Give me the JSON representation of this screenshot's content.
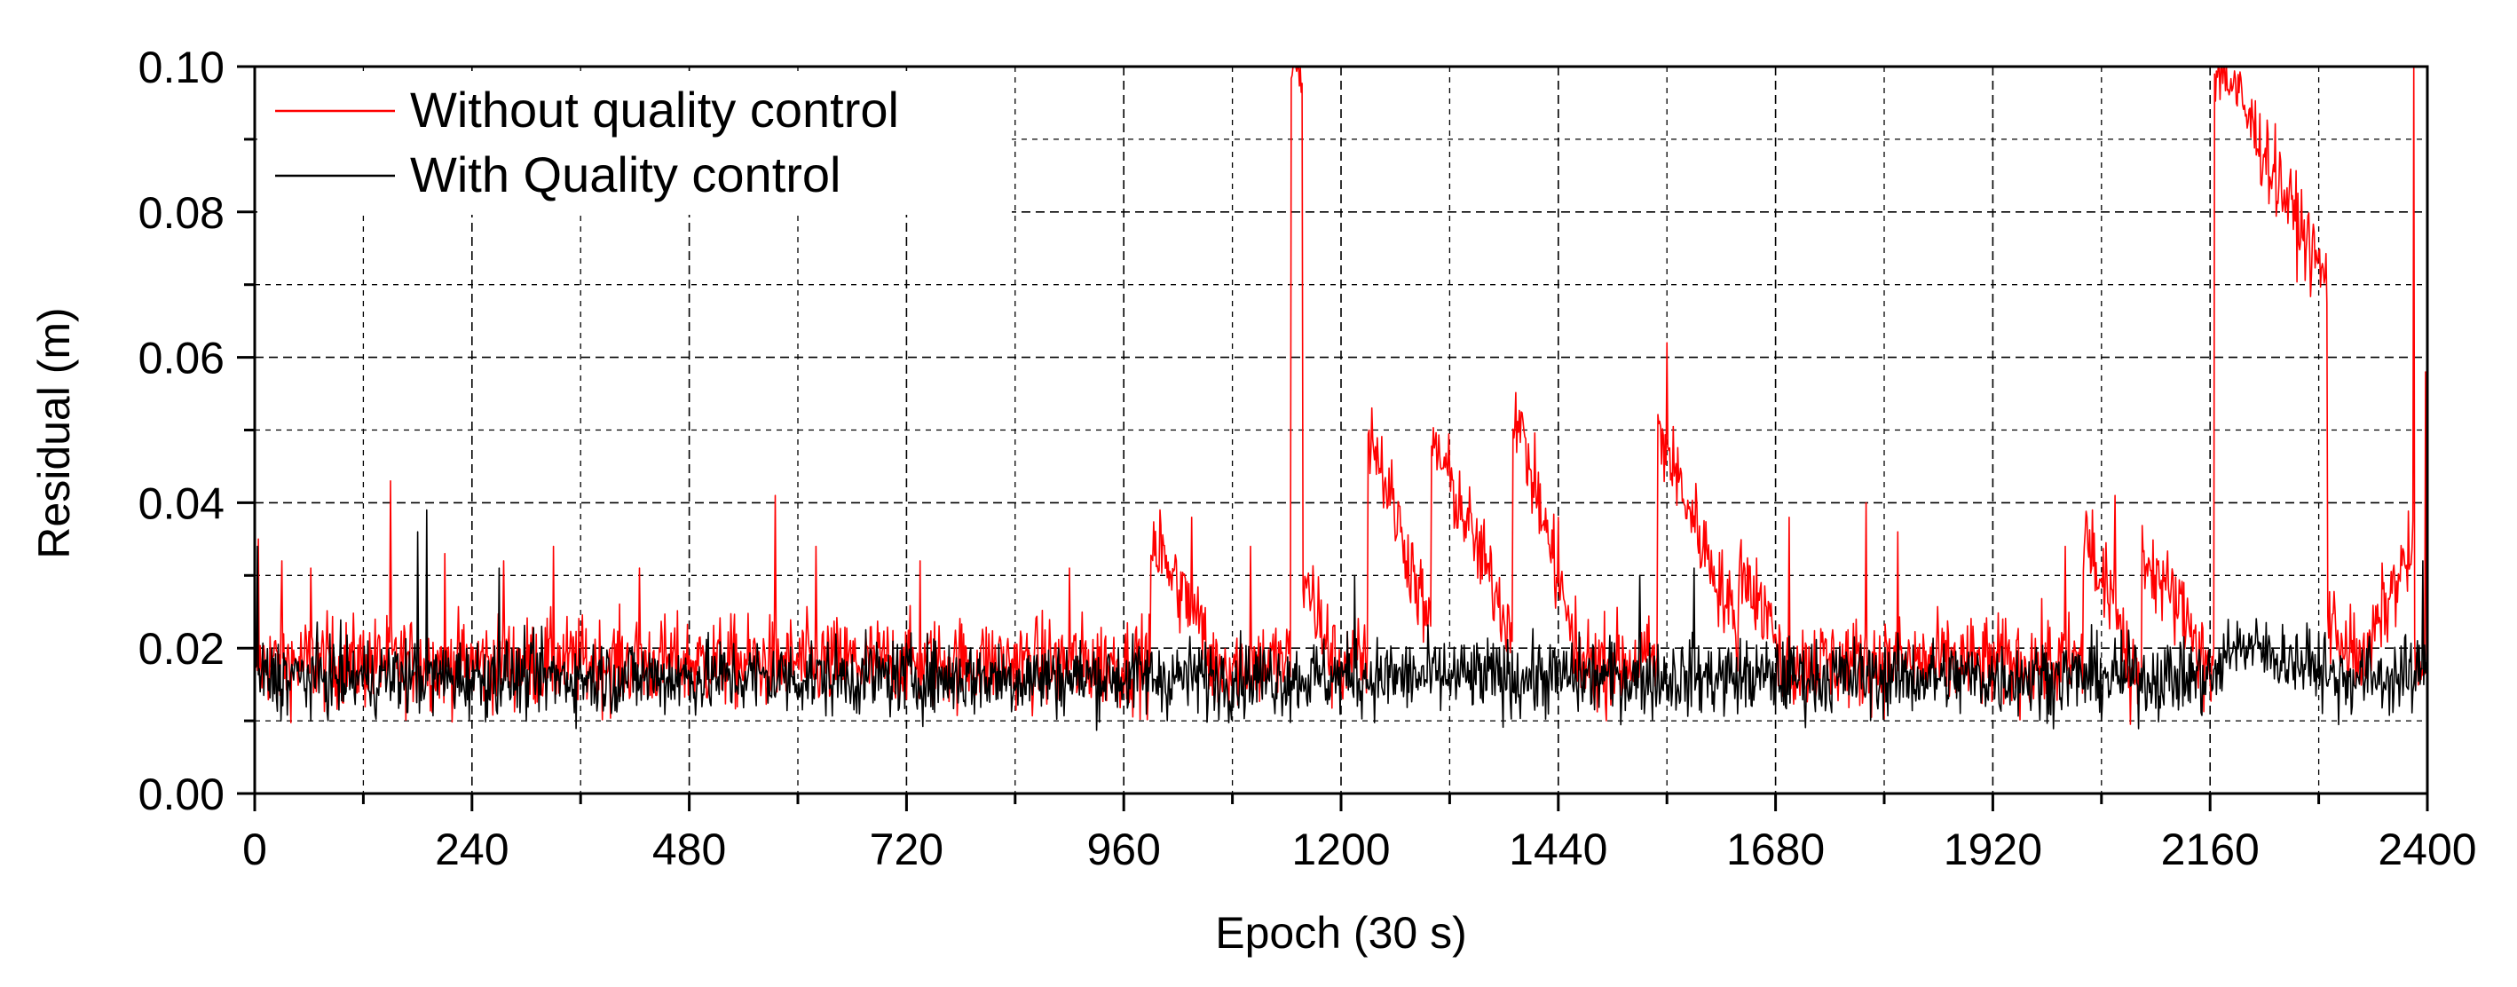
{
  "chart_data": {
    "type": "line",
    "title": "",
    "xlabel": "Epoch (30 s)",
    "ylabel": "Residual (m)",
    "xlim": [
      0,
      2400
    ],
    "ylim": [
      0,
      0.1
    ],
    "x_ticks": [
      0,
      240,
      480,
      720,
      960,
      1200,
      1440,
      1680,
      1920,
      2160,
      2400
    ],
    "x_tick_labels": [
      "0",
      "240",
      "480",
      "720",
      "960",
      "1200",
      "1440",
      "1680",
      "1920",
      "2160",
      "2400"
    ],
    "y_ticks": [
      0,
      0.02,
      0.04,
      0.06,
      0.08,
      0.1
    ],
    "y_tick_labels": [
      "0.00",
      "0.02",
      "0.04",
      "0.06",
      "0.08",
      "0.10"
    ],
    "x_minor_step": 120,
    "y_minor_step": 0.01,
    "grid": true,
    "legend_position": "top-left",
    "series": [
      {
        "name": "Without quality control",
        "color": "#ff0000",
        "baseline": 0.018,
        "noise": 0.0045,
        "spikes": [
          {
            "x": 4,
            "y": 0.035
          },
          {
            "x": 30,
            "y": 0.032
          },
          {
            "x": 62,
            "y": 0.031
          },
          {
            "x": 150,
            "y": 0.043
          },
          {
            "x": 210,
            "y": 0.033
          },
          {
            "x": 275,
            "y": 0.032
          },
          {
            "x": 330,
            "y": 0.034
          },
          {
            "x": 425,
            "y": 0.031
          },
          {
            "x": 575,
            "y": 0.041
          },
          {
            "x": 620,
            "y": 0.034
          },
          {
            "x": 735,
            "y": 0.032
          },
          {
            "x": 900,
            "y": 0.031
          },
          {
            "x": 1000,
            "y": 0.039
          },
          {
            "x": 1035,
            "y": 0.038
          },
          {
            "x": 1100,
            "y": 0.034
          },
          {
            "x": 1150,
            "y": 0.1
          },
          {
            "x": 1153,
            "y": 0.1
          },
          {
            "x": 1440,
            "y": 0.038
          },
          {
            "x": 1560,
            "y": 0.062
          },
          {
            "x": 1695,
            "y": 0.038
          },
          {
            "x": 1780,
            "y": 0.04
          },
          {
            "x": 1815,
            "y": 0.036
          },
          {
            "x": 2000,
            "y": 0.034
          },
          {
            "x": 2030,
            "y": 0.039
          },
          {
            "x": 2055,
            "y": 0.041
          },
          {
            "x": 2385,
            "y": 0.1
          },
          {
            "x": 2398,
            "y": 0.058
          }
        ],
        "episodes": [
          {
            "start": 990,
            "end": 1050,
            "peak": 0.035,
            "decay_to": 0.022
          },
          {
            "start": 1145,
            "end": 1158,
            "peak": 0.1,
            "decay_to": 0.1
          },
          {
            "start": 1158,
            "end": 1185,
            "peak": 0.03,
            "decay_to": 0.022
          },
          {
            "start": 1230,
            "end": 1300,
            "peak": 0.051,
            "decay_to": 0.022
          },
          {
            "start": 1300,
            "end": 1390,
            "peak": 0.049,
            "decay_to": 0.022
          },
          {
            "start": 1390,
            "end": 1455,
            "peak": 0.054,
            "decay_to": 0.022
          },
          {
            "start": 1550,
            "end": 1640,
            "peak": 0.05,
            "decay_to": 0.022
          },
          {
            "start": 1640,
            "end": 1680,
            "peak": 0.032,
            "decay_to": 0.022
          },
          {
            "start": 2020,
            "end": 2065,
            "peak": 0.036,
            "decay_to": 0.022
          },
          {
            "start": 2085,
            "end": 2145,
            "peak": 0.033,
            "decay_to": 0.022
          },
          {
            "start": 2165,
            "end": 2175,
            "peak": 0.1,
            "decay_to": 0.1
          },
          {
            "start": 2175,
            "end": 2290,
            "peak": 0.1,
            "decay_to": 0.07
          },
          {
            "start": 2290,
            "end": 2325,
            "peak": 0.024,
            "decay_to": 0.018
          },
          {
            "start": 2340,
            "end": 2384,
            "peak": 0.022,
            "decay_to": 0.034
          }
        ]
      },
      {
        "name": "With Quality control",
        "color": "#000000",
        "baseline": 0.016,
        "noise": 0.0038,
        "spikes": [
          {
            "x": 3,
            "y": 0.034
          },
          {
            "x": 180,
            "y": 0.036
          },
          {
            "x": 190,
            "y": 0.039
          },
          {
            "x": 270,
            "y": 0.031
          },
          {
            "x": 1215,
            "y": 0.03
          },
          {
            "x": 1530,
            "y": 0.03
          },
          {
            "x": 1590,
            "y": 0.031
          },
          {
            "x": 2395,
            "y": 0.032
          }
        ],
        "episodes": [
          {
            "start": 2175,
            "end": 2290,
            "peak": 0.021,
            "decay_to": 0.017
          }
        ]
      }
    ]
  }
}
